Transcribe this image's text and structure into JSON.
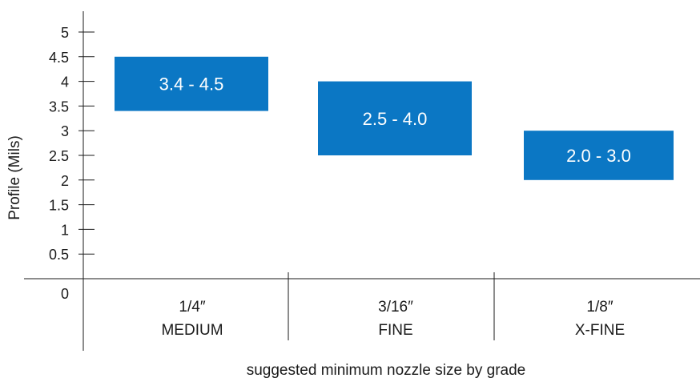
{
  "chart_data": {
    "type": "bar",
    "subtype": "floating-range",
    "ylabel": "Profile (Mils)",
    "xlabel": "suggested minimum nozzle size by grade",
    "ylim": [
      0,
      5
    ],
    "yticks": [
      {
        "value": 0,
        "label": "0"
      },
      {
        "value": 0.5,
        "label": "0.5"
      },
      {
        "value": 1,
        "label": "1"
      },
      {
        "value": 1.5,
        "label": "1.5"
      },
      {
        "value": 2,
        "label": "2"
      },
      {
        "value": 2.5,
        "label": "2.5"
      },
      {
        "value": 3,
        "label": "3"
      },
      {
        "value": 3.5,
        "label": "3.5"
      },
      {
        "value": 4,
        "label": "4"
      },
      {
        "value": 4.5,
        "label": "4.5"
      },
      {
        "value": 5,
        "label": "5"
      }
    ],
    "categories": [
      {
        "size": "1/4″",
        "grade": "MEDIUM"
      },
      {
        "size": "3/16″",
        "grade": "FINE"
      },
      {
        "size": "1/8″",
        "grade": "X-FINE"
      }
    ],
    "ranges": [
      {
        "low": 3.4,
        "high": 4.5,
        "label": "3.4 - 4.5"
      },
      {
        "low": 2.5,
        "high": 4.0,
        "label": "2.5 - 4.0"
      },
      {
        "low": 2.0,
        "high": 3.0,
        "label": "2.0 - 3.0"
      }
    ],
    "colors": {
      "bar": "#0b77c4",
      "bar_text": "#ffffff",
      "axis": "#1a1a1a"
    },
    "grid": false,
    "legend": "none"
  }
}
